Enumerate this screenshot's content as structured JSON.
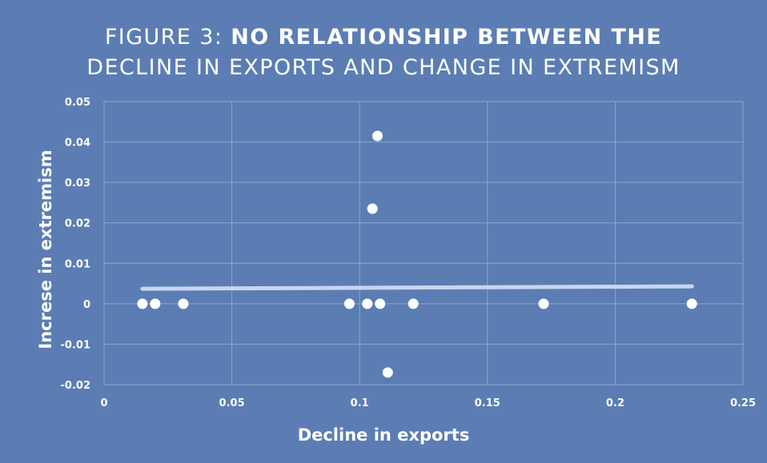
{
  "colors": {
    "background": "#5b7db4",
    "grid": "#8aa6d3",
    "points": "#ffffff",
    "trendline": "#c9d6ee",
    "text": "#ffffff"
  },
  "chart_data": {
    "type": "scatter",
    "title_prefix": "FIGURE 3: ",
    "title_line_1": "NO RELATIONSHIP BETWEEN THE",
    "title_line_2": "DECLINE IN EXPORTS AND CHANGE IN EXTREMISM",
    "xlabel": "Decline in exports",
    "ylabel": "Increse in extremism",
    "xlim": [
      0,
      0.25
    ],
    "ylim": [
      -0.02,
      0.05
    ],
    "x_ticks": [
      0,
      0.05,
      0.1,
      0.15,
      0.2,
      0.25
    ],
    "x_tick_labels": [
      "0",
      "0.05",
      "0.1",
      "0.15",
      "0.2",
      "0.25"
    ],
    "y_ticks": [
      -0.02,
      -0.01,
      0,
      0.01,
      0.02,
      0.03,
      0.04,
      0.05
    ],
    "y_tick_labels": [
      "-0.02",
      "-0.01",
      "0",
      "0.01",
      "0.02",
      "0.03",
      "0.04",
      "0.05"
    ],
    "grid": true,
    "legend": "none",
    "points": [
      {
        "x": 0.015,
        "y": 0
      },
      {
        "x": 0.02,
        "y": 0
      },
      {
        "x": 0.031,
        "y": 0
      },
      {
        "x": 0.096,
        "y": 0
      },
      {
        "x": 0.103,
        "y": 0
      },
      {
        "x": 0.105,
        "y": 0.0235
      },
      {
        "x": 0.107,
        "y": 0.0415
      },
      {
        "x": 0.108,
        "y": 0
      },
      {
        "x": 0.111,
        "y": -0.017
      },
      {
        "x": 0.121,
        "y": 0
      },
      {
        "x": 0.172,
        "y": 0
      },
      {
        "x": 0.23,
        "y": 0
      }
    ],
    "trendline": {
      "x": [
        0.015,
        0.23
      ],
      "y": [
        0.0037,
        0.0043
      ]
    }
  }
}
